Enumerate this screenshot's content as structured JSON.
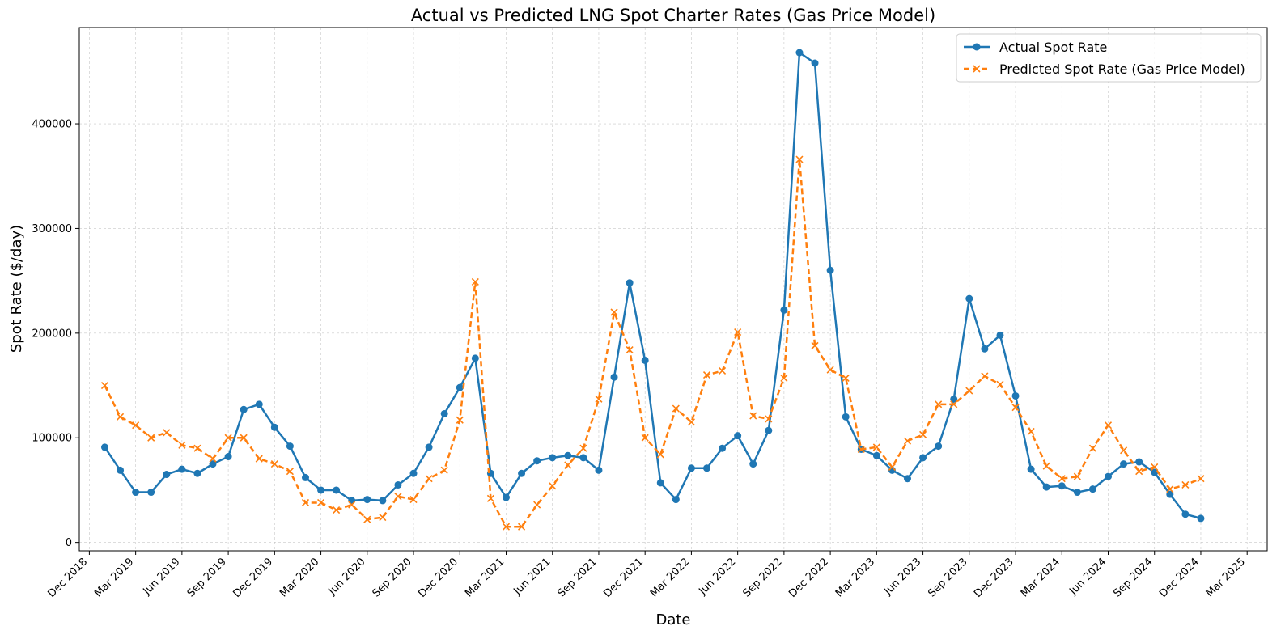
{
  "chart_data": {
    "type": "line",
    "title": "Actual vs Predicted LNG Spot Charter Rates (Gas Price Model)",
    "xlabel": "Date",
    "ylabel": "Spot Rate ($/day)",
    "x_axis": {
      "type": "date",
      "tick_labels": [
        "Dec 2018",
        "Mar 2019",
        "Jun 2019",
        "Sep 2019",
        "Dec 2019",
        "Mar 2020",
        "Jun 2020",
        "Sep 2020",
        "Dec 2020",
        "Mar 2021",
        "Jun 2021",
        "Sep 2021",
        "Dec 2021",
        "Mar 2022",
        "Jun 2022",
        "Sep 2022",
        "Dec 2022",
        "Mar 2023",
        "Jun 2023",
        "Sep 2023",
        "Dec 2023",
        "Mar 2024",
        "Jun 2024",
        "Sep 2024",
        "Dec 2024",
        "Mar 2025"
      ],
      "range": [
        "Nov 2018",
        "Apr 2025"
      ]
    },
    "y_axis": {
      "ticks": [
        0,
        100000,
        200000,
        300000,
        400000
      ],
      "tick_labels": [
        "0",
        "100000",
        "200000",
        "300000",
        "400000"
      ],
      "ylim": [
        -8000,
        492000
      ]
    },
    "grid": true,
    "grid_style": "dashed",
    "legend_position": "top-right",
    "x": [
      "Jan 2019",
      "Feb 2019",
      "Mar 2019",
      "Apr 2019",
      "May 2019",
      "Jun 2019",
      "Jul 2019",
      "Aug 2019",
      "Sep 2019",
      "Oct 2019",
      "Nov 2019",
      "Dec 2019",
      "Jan 2020",
      "Feb 2020",
      "Mar 2020",
      "Apr 2020",
      "May 2020",
      "Jun 2020",
      "Jul 2020",
      "Aug 2020",
      "Sep 2020",
      "Oct 2020",
      "Nov 2020",
      "Dec 2020",
      "Jan 2021",
      "Feb 2021",
      "Mar 2021",
      "Apr 2021",
      "May 2021",
      "Jun 2021",
      "Jul 2021",
      "Aug 2021",
      "Sep 2021",
      "Oct 2021",
      "Nov 2021",
      "Dec 2021",
      "Jan 2022",
      "Feb 2022",
      "Mar 2022",
      "Apr 2022",
      "May 2022",
      "Jun 2022",
      "Jul 2022",
      "Aug 2022",
      "Sep 2022",
      "Oct 2022",
      "Nov 2022",
      "Dec 2022",
      "Jan 2023",
      "Feb 2023",
      "Mar 2023",
      "Apr 2023",
      "May 2023",
      "Jun 2023",
      "Jul 2023",
      "Aug 2023",
      "Sep 2023",
      "Oct 2023",
      "Nov 2023",
      "Dec 2023",
      "Jan 2024",
      "Feb 2024",
      "Mar 2024",
      "Apr 2024",
      "May 2024",
      "Jun 2024",
      "Jul 2024",
      "Aug 2024",
      "Sep 2024",
      "Oct 2024",
      "Nov 2024",
      "Dec 2024"
    ],
    "series": [
      {
        "name": "Actual Spot Rate",
        "color": "#1f77b4",
        "line_style": "solid",
        "marker": "circle",
        "values": [
          91000,
          69000,
          48000,
          48000,
          65000,
          70000,
          66000,
          75000,
          82000,
          127000,
          132000,
          110000,
          92000,
          62000,
          50000,
          50000,
          40000,
          41000,
          40000,
          55000,
          66000,
          91000,
          123000,
          148000,
          176000,
          66000,
          43000,
          66000,
          78000,
          81000,
          83000,
          81000,
          69000,
          158000,
          248000,
          174000,
          57000,
          41000,
          71000,
          71000,
          90000,
          102000,
          75000,
          107000,
          222000,
          468000,
          458000,
          260000,
          120000,
          89000,
          83000,
          69000,
          61000,
          81000,
          92000,
          137000,
          233000,
          185000,
          198000,
          140000,
          70000,
          53000,
          54000,
          48000,
          51000,
          63000,
          75000,
          77000,
          67000,
          46000,
          27000,
          23000
        ]
      },
      {
        "name": "Predicted Spot Rate (Gas Price Model)",
        "color": "#ff7f0e",
        "line_style": "dashed",
        "marker": "x",
        "values": [
          150000,
          120000,
          112000,
          100000,
          105000,
          93000,
          90000,
          80000,
          100000,
          100000,
          80000,
          75000,
          68000,
          38000,
          38000,
          31000,
          36000,
          22000,
          24000,
          44000,
          41000,
          61000,
          69000,
          117000,
          249000,
          42000,
          15000,
          15000,
          36000,
          54000,
          74000,
          90000,
          137000,
          220000,
          184000,
          100000,
          84000,
          128000,
          115000,
          160000,
          164000,
          201000,
          121000,
          118000,
          157000,
          366000,
          188000,
          165000,
          157000,
          89000,
          91000,
          72000,
          97000,
          103000,
          132000,
          132000,
          145000,
          159000,
          151000,
          129000,
          106000,
          73000,
          61000,
          63000,
          90000,
          112000,
          88000,
          68000,
          72000,
          51000,
          55000,
          61000
        ]
      }
    ]
  }
}
